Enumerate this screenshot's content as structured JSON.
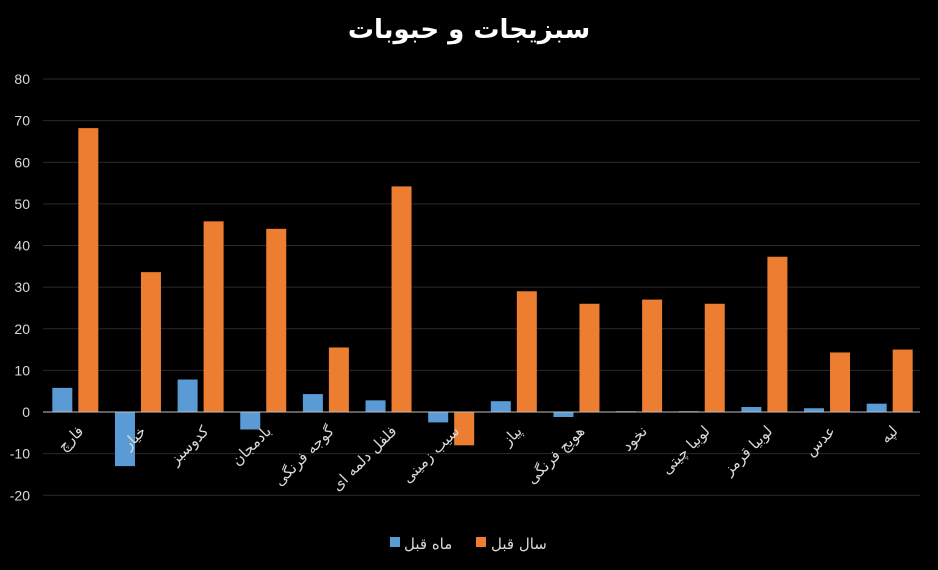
{
  "chart_data": {
    "type": "bar",
    "title": "سبزیجات و حبوبات",
    "categories": [
      "فارچ",
      "خیار",
      "کدوسبز",
      "بادمجان",
      "گوجه فرنگی",
      "فلفل دلمه ای",
      "سیب زمینی",
      "پیاز",
      "هویج فرنگی",
      "نخود",
      "لوبیا چیتی",
      "لوبیا قرمز",
      "عدس",
      "لپه"
    ],
    "series": [
      {
        "name": "ماه قبل",
        "color": "#5b9bd5",
        "values": [
          5.8,
          -13,
          7.8,
          -4.2,
          4.3,
          2.8,
          -2.5,
          2.6,
          -1.2,
          0.2,
          0.2,
          1.2,
          0.9,
          2.0
        ]
      },
      {
        "name": "سال قبل",
        "color": "#ed7d31",
        "values": [
          68.2,
          33.6,
          45.8,
          44.0,
          15.5,
          54.2,
          -8.0,
          29.0,
          26.0,
          27.0,
          26.0,
          37.3,
          14.3,
          15.0
        ]
      }
    ],
    "yticks": [
      80,
      70,
      60,
      50,
      40,
      30,
      20,
      10,
      0,
      -10,
      -20
    ],
    "ylim": [
      -20,
      80
    ],
    "grid": true,
    "legend_position": "bottom"
  }
}
